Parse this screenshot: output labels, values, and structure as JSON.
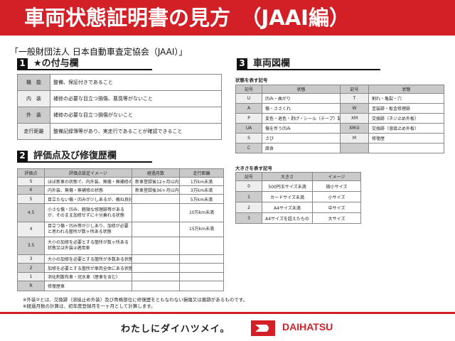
{
  "title": "車両状態証明書の見方　（JAAI編）",
  "organization": "「一般財団法人 日本自動車査定協会（JAAI）」",
  "section1": {
    "num": "1",
    "title": "★の付与欄",
    "rows": [
      {
        "k": "機　能",
        "v": "整備、保証付きであること"
      },
      {
        "k": "内　装",
        "v": "補修の必要な目立つ損傷、悪臭等がないこと"
      },
      {
        "k": "外　装",
        "v": "補修の必要な目立つ損傷がないこと"
      },
      {
        "k": "走行距離",
        "v": "整備記録簿等があり、実走行であることが確認できること"
      }
    ]
  },
  "section2": {
    "num": "2",
    "title": "評価点及び修復歴欄",
    "headers": [
      "評価点",
      "評価点設定イメージ",
      "経過月数",
      "走行距離"
    ],
    "rows": [
      [
        "S",
        "ほぼ新車の状態で、内外装、無傷・無補修の状態",
        "新車登録後12ヶ月以内",
        "1万km未満"
      ],
      [
        "6",
        "内外装、無傷・無補修の状態",
        "新車登録後36ヶ月以内",
        "3万km未満"
      ],
      [
        "5",
        "目立たない傷・凹みが少しあるが、概ね良好な状態",
        "",
        "5万km未満"
      ],
      [
        "4.5",
        "小さな傷・凹み、軽微な修理跡等があるが、そのまま加修せずに十分乗れる状態",
        "",
        "10万km未満"
      ],
      [
        "4",
        "目立つ傷・凹み等が少しあり、加修が必要と思われる箇所が数ヶ所ある状態",
        "",
        "15万km未満"
      ],
      [
        "3.5",
        "大小の加修を必要とする箇所が数ヶ所ある状態又は外装②適用車",
        "",
        ""
      ],
      [
        "3",
        "大小の加修を必要とする箇所が多数ある状態",
        "",
        ""
      ],
      [
        "2",
        "加修を必要とする箇所が車両全体にある状態",
        "",
        ""
      ],
      [
        "1",
        "消化剤散布車・冠水車（歴車を含む）",
        "",
        ""
      ],
      [
        "R",
        "修復歴車",
        "",
        ""
      ]
    ]
  },
  "notes": [
    "※外装②とは、交換跡（溶接止め外装）及び骨格部位に修復歴をともなわない損傷又は痕跡があるものです。",
    "※経過月数の計算は、初年度登録月を一ヶ月として計算します。"
  ],
  "section3": {
    "num": "3",
    "title": "車両図欄",
    "state_label": "状態を表す記号",
    "state_headers": [
      "記号",
      "状態",
      "記号",
      "状態"
    ],
    "state_rows": [
      [
        "U",
        "凹み・曲がり",
        "T",
        "割れ・亀裂・穴"
      ],
      [
        "A",
        "傷・ささくれ",
        "W",
        "塗装跡・板金修理跡"
      ],
      [
        "P",
        "変色・退色・剥げ・シール（テープ）跡",
        "XM",
        "交換跡（ネジ止め外板）"
      ],
      [
        "UA",
        "傷を伴う凹み",
        "XM②",
        "交換跡（溶接止め外板）"
      ],
      [
        "S",
        "さび",
        "M",
        "修復歴"
      ],
      [
        "C",
        "腐食",
        "",
        ""
      ]
    ],
    "size_label": "大きさを表す記号",
    "size_headers": [
      "記号",
      "大きさ",
      "イメージ"
    ],
    "size_rows": [
      [
        "0",
        "500円玉サイズ未満",
        "微小サイズ"
      ],
      [
        "1",
        "カードサイズ未満",
        "小サイズ"
      ],
      [
        "2",
        "A4サイズ未満",
        "中サイズ"
      ],
      [
        "3",
        "A4サイズを超えたもの",
        "大サイズ"
      ]
    ]
  },
  "footer": {
    "slogan": "わたしにダイハツメイ。",
    "brand": "DAIHATSU"
  },
  "colors": {
    "brand_red": "#d32027",
    "header_gray": "#c9c9c9"
  }
}
